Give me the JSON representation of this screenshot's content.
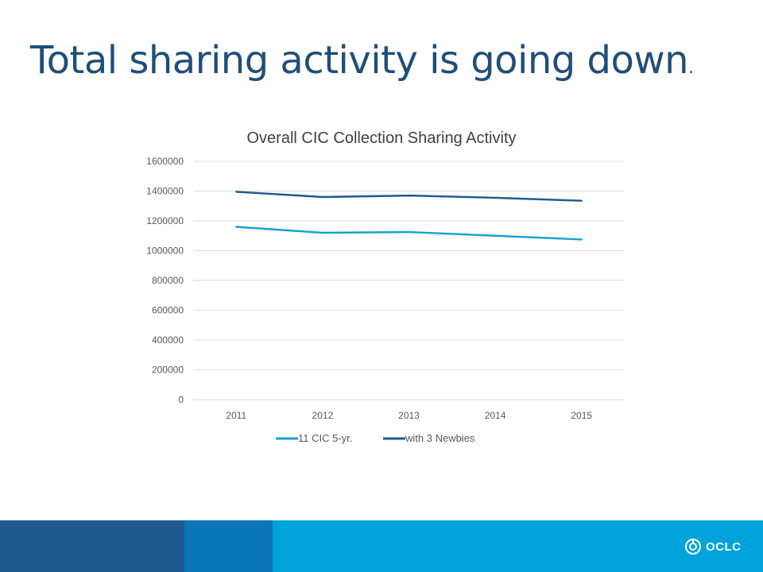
{
  "slide": {
    "title": "Total sharing activity is going down",
    "title_suffix": "."
  },
  "chart_data": {
    "type": "line",
    "title": "Overall CIC Collection Sharing Activity",
    "xlabel": "",
    "ylabel": "",
    "categories": [
      "2011",
      "2012",
      "2013",
      "2014",
      "2015"
    ],
    "series": [
      {
        "name": "11 CIC 5-yr.",
        "color": "#17a2d1",
        "values": [
          1160000,
          1120000,
          1125000,
          1100000,
          1075000
        ]
      },
      {
        "name": "with 3 Newbies",
        "color": "#1f5a8e",
        "values": [
          1395000,
          1360000,
          1370000,
          1355000,
          1335000
        ]
      }
    ],
    "ylim": [
      0,
      1600000
    ],
    "yticks": [
      0,
      200000,
      400000,
      600000,
      800000,
      1000000,
      1200000,
      1400000,
      1600000
    ],
    "grid": true,
    "legend_position": "bottom"
  },
  "footer": {
    "logo_text": "OCLC",
    "colors": [
      "#1f5a8e",
      "#0a75b8",
      "#00a3d9"
    ]
  }
}
